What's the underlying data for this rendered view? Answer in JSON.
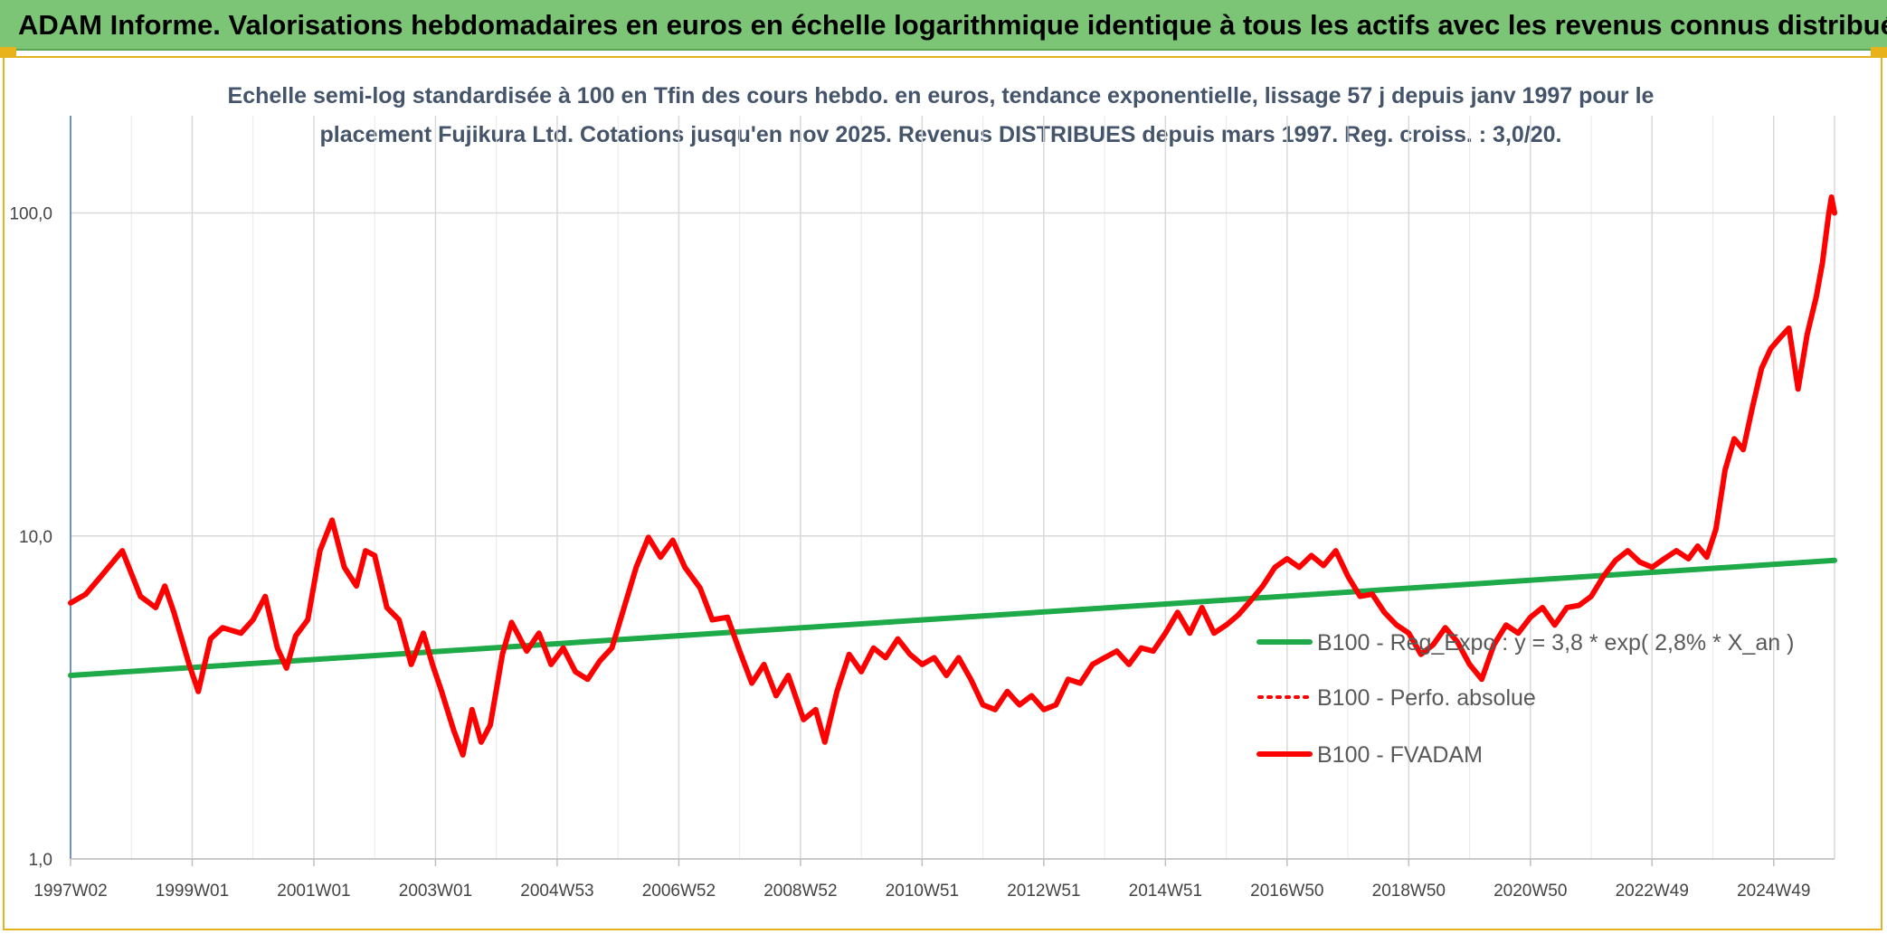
{
  "header": {
    "title": "ADAM Informe. Valorisations hebdomadaires en euros en échelle logarithmique identique à tous les actifs avec les revenus connus distribués"
  },
  "chart_data": {
    "type": "line",
    "title_line1": "Echelle semi-log standardisée à 100 en Tfin des cours hebdo. en euros, tendance exponentielle, lissage 57 j depuis janv 1997 pour le",
    "title_line2": "placement Fujikura Ltd. Cotations jusqu'en nov 2025. Revenus DISTRIBUES depuis mars 1997. Reg. croiss. : 3,0/20.",
    "y_scale": "log",
    "ylim": [
      1,
      200
    ],
    "xlim": [
      1997.0,
      2026.0
    ],
    "y_ticks": [
      {
        "value": 1,
        "label": "1,0"
      },
      {
        "value": 10,
        "label": "10,0"
      },
      {
        "value": 100,
        "label": "100,0"
      }
    ],
    "x_ticks": [
      {
        "value": 1997.0,
        "label": "1997W02"
      },
      {
        "value": 1999.0,
        "label": "1999W01"
      },
      {
        "value": 2001.0,
        "label": "2001W01"
      },
      {
        "value": 2003.0,
        "label": "2003W01"
      },
      {
        "value": 2005.0,
        "label": "2004W53"
      },
      {
        "value": 2007.0,
        "label": "2006W52"
      },
      {
        "value": 2009.0,
        "label": "2008W52"
      },
      {
        "value": 2011.0,
        "label": "2010W51"
      },
      {
        "value": 2013.0,
        "label": "2012W51"
      },
      {
        "value": 2015.0,
        "label": "2014W51"
      },
      {
        "value": 2017.0,
        "label": "2016W50"
      },
      {
        "value": 2019.0,
        "label": "2018W50"
      },
      {
        "value": 2021.0,
        "label": "2020W50"
      },
      {
        "value": 2023.0,
        "label": "2022W49"
      },
      {
        "value": 2025.0,
        "label": "2024W49"
      }
    ],
    "grid": "vertical and horizontal",
    "legend_position": "right-middle",
    "series": [
      {
        "name": "B100 - Reg_Expo : y = 3,8 * exp( 2,8% *  X_an )",
        "color": "#1faa4a",
        "style": "solid",
        "points": [
          [
            1997.0,
            3.7
          ],
          [
            2026.0,
            8.4
          ]
        ]
      },
      {
        "name": "B100 - Perfo. absolue",
        "color": "#ff0000",
        "style": "dotted",
        "points": []
      },
      {
        "name": "B100 - FVADAM",
        "color": "#ff0000",
        "style": "solid",
        "points": [
          [
            1997.0,
            6.2
          ],
          [
            1997.25,
            6.6
          ],
          [
            1997.5,
            7.5
          ],
          [
            1997.85,
            9.0
          ],
          [
            1998.15,
            6.5
          ],
          [
            1998.4,
            6.0
          ],
          [
            1998.55,
            7.0
          ],
          [
            1998.7,
            5.8
          ],
          [
            1998.95,
            4.0
          ],
          [
            1999.1,
            3.3
          ],
          [
            1999.3,
            4.8
          ],
          [
            1999.5,
            5.2
          ],
          [
            1999.8,
            5.0
          ],
          [
            2000.0,
            5.5
          ],
          [
            2000.2,
            6.5
          ],
          [
            2000.4,
            4.5
          ],
          [
            2000.55,
            3.9
          ],
          [
            2000.7,
            4.9
          ],
          [
            2000.9,
            5.5
          ],
          [
            2001.1,
            9.0
          ],
          [
            2001.3,
            11.2
          ],
          [
            2001.5,
            8.0
          ],
          [
            2001.7,
            7.0
          ],
          [
            2001.85,
            9.0
          ],
          [
            2002.0,
            8.7
          ],
          [
            2002.2,
            6.0
          ],
          [
            2002.4,
            5.5
          ],
          [
            2002.6,
            4.0
          ],
          [
            2002.8,
            5.0
          ],
          [
            2002.95,
            4.0
          ],
          [
            2003.1,
            3.3
          ],
          [
            2003.3,
            2.5
          ],
          [
            2003.45,
            2.1
          ],
          [
            2003.6,
            2.9
          ],
          [
            2003.75,
            2.3
          ],
          [
            2003.9,
            2.6
          ],
          [
            2004.1,
            4.3
          ],
          [
            2004.25,
            5.4
          ],
          [
            2004.5,
            4.4
          ],
          [
            2004.7,
            5.0
          ],
          [
            2004.9,
            4.0
          ],
          [
            2005.1,
            4.5
          ],
          [
            2005.3,
            3.8
          ],
          [
            2005.5,
            3.6
          ],
          [
            2005.7,
            4.1
          ],
          [
            2005.9,
            4.5
          ],
          [
            2006.1,
            6.0
          ],
          [
            2006.3,
            8.0
          ],
          [
            2006.5,
            9.9
          ],
          [
            2006.7,
            8.6
          ],
          [
            2006.9,
            9.7
          ],
          [
            2007.1,
            8.0
          ],
          [
            2007.35,
            6.9
          ],
          [
            2007.55,
            5.5
          ],
          [
            2007.8,
            5.6
          ],
          [
            2008.0,
            4.4
          ],
          [
            2008.2,
            3.5
          ],
          [
            2008.4,
            4.0
          ],
          [
            2008.6,
            3.2
          ],
          [
            2008.8,
            3.7
          ],
          [
            2009.05,
            2.7
          ],
          [
            2009.25,
            2.9
          ],
          [
            2009.4,
            2.3
          ],
          [
            2009.6,
            3.3
          ],
          [
            2009.8,
            4.3
          ],
          [
            2010.0,
            3.8
          ],
          [
            2010.2,
            4.5
          ],
          [
            2010.4,
            4.2
          ],
          [
            2010.6,
            4.8
          ],
          [
            2010.8,
            4.3
          ],
          [
            2011.0,
            4.0
          ],
          [
            2011.2,
            4.2
          ],
          [
            2011.4,
            3.7
          ],
          [
            2011.6,
            4.2
          ],
          [
            2011.8,
            3.6
          ],
          [
            2012.0,
            3.0
          ],
          [
            2012.2,
            2.9
          ],
          [
            2012.4,
            3.3
          ],
          [
            2012.6,
            3.0
          ],
          [
            2012.8,
            3.2
          ],
          [
            2013.0,
            2.9
          ],
          [
            2013.2,
            3.0
          ],
          [
            2013.4,
            3.6
          ],
          [
            2013.6,
            3.5
          ],
          [
            2013.8,
            4.0
          ],
          [
            2014.0,
            4.2
          ],
          [
            2014.2,
            4.4
          ],
          [
            2014.4,
            4.0
          ],
          [
            2014.6,
            4.5
          ],
          [
            2014.8,
            4.4
          ],
          [
            2015.0,
            5.0
          ],
          [
            2015.2,
            5.8
          ],
          [
            2015.4,
            5.0
          ],
          [
            2015.6,
            6.0
          ],
          [
            2015.8,
            5.0
          ],
          [
            2016.0,
            5.3
          ],
          [
            2016.2,
            5.7
          ],
          [
            2016.4,
            6.3
          ],
          [
            2016.6,
            7.0
          ],
          [
            2016.8,
            8.0
          ],
          [
            2017.0,
            8.5
          ],
          [
            2017.2,
            8.0
          ],
          [
            2017.4,
            8.7
          ],
          [
            2017.6,
            8.1
          ],
          [
            2017.8,
            9.0
          ],
          [
            2018.0,
            7.5
          ],
          [
            2018.2,
            6.5
          ],
          [
            2018.4,
            6.6
          ],
          [
            2018.6,
            5.8
          ],
          [
            2018.8,
            5.3
          ],
          [
            2019.0,
            5.0
          ],
          [
            2019.2,
            4.3
          ],
          [
            2019.4,
            4.6
          ],
          [
            2019.6,
            5.2
          ],
          [
            2019.8,
            4.7
          ],
          [
            2020.0,
            4.0
          ],
          [
            2020.2,
            3.6
          ],
          [
            2020.4,
            4.6
          ],
          [
            2020.6,
            5.3
          ],
          [
            2020.8,
            5.0
          ],
          [
            2021.0,
            5.6
          ],
          [
            2021.2,
            6.0
          ],
          [
            2021.4,
            5.3
          ],
          [
            2021.6,
            6.0
          ],
          [
            2021.8,
            6.1
          ],
          [
            2022.0,
            6.5
          ],
          [
            2022.2,
            7.5
          ],
          [
            2022.4,
            8.4
          ],
          [
            2022.6,
            9.0
          ],
          [
            2022.8,
            8.3
          ],
          [
            2023.0,
            8.0
          ],
          [
            2023.2,
            8.5
          ],
          [
            2023.4,
            9.0
          ],
          [
            2023.6,
            8.5
          ],
          [
            2023.75,
            9.3
          ],
          [
            2023.9,
            8.6
          ],
          [
            2024.05,
            10.5
          ],
          [
            2024.2,
            16.0
          ],
          [
            2024.35,
            20.0
          ],
          [
            2024.5,
            18.5
          ],
          [
            2024.65,
            25.0
          ],
          [
            2024.8,
            33.0
          ],
          [
            2024.95,
            38.0
          ],
          [
            2025.1,
            41.0
          ],
          [
            2025.25,
            44.0
          ],
          [
            2025.4,
            28.5
          ],
          [
            2025.55,
            42.0
          ],
          [
            2025.7,
            55.0
          ],
          [
            2025.8,
            70.0
          ],
          [
            2025.9,
            98.0
          ],
          [
            2025.95,
            112.0
          ],
          [
            2026.0,
            100.0
          ]
        ]
      }
    ]
  }
}
